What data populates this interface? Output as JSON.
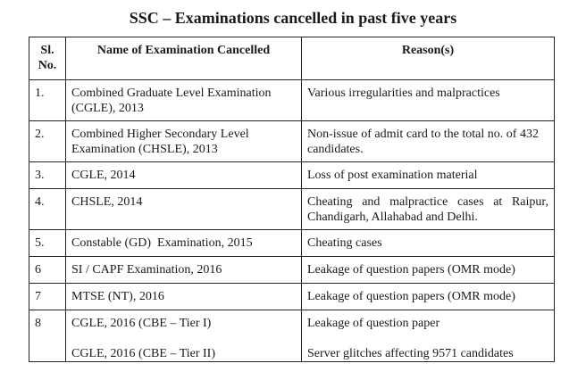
{
  "title": "SSC – Examinations cancelled in past five years",
  "headers": {
    "sl_line1": "Sl.",
    "sl_line2": "No.",
    "name": "Name of Examination Cancelled",
    "reason": "Reason(s)"
  },
  "rows": [
    {
      "sl": "1.",
      "name": "Combined Graduate Level Examination (CGLE), 2013",
      "reason": "Various irregularities and malpractices"
    },
    {
      "sl": "2.",
      "name": "Combined Higher Secondary Level Examination (CHSLE), 2013",
      "reason": "Non-issue of admit card to the total no. of 432 candidates."
    },
    {
      "sl": "3.",
      "name": "CGLE, 2014",
      "reason": "Loss of post examination material"
    },
    {
      "sl": "4.",
      "name": "CHSLE, 2014",
      "reason": "Cheating and malpractice cases at Raipur, Chandigarh, Allahabad and Delhi."
    },
    {
      "sl": "5.",
      "name": "Constable (GD)  Examination, 2015",
      "reason": "Cheating cases"
    },
    {
      "sl": "6",
      "name": "SI / CAPF Examination, 2016",
      "reason": "Leakage of question papers (OMR mode)"
    },
    {
      "sl": "7",
      "name": "MTSE (NT), 2016",
      "reason": "Leakage of question papers (OMR mode)"
    },
    {
      "sl": "8",
      "name_a": "CGLE, 2016 (CBE – Tier I)",
      "reason_a": "Leakage of question paper",
      "name_b": "CGLE, 2016 (CBE – Tier II)",
      "reason_b": "Server glitches affecting 9571 candidates"
    }
  ]
}
